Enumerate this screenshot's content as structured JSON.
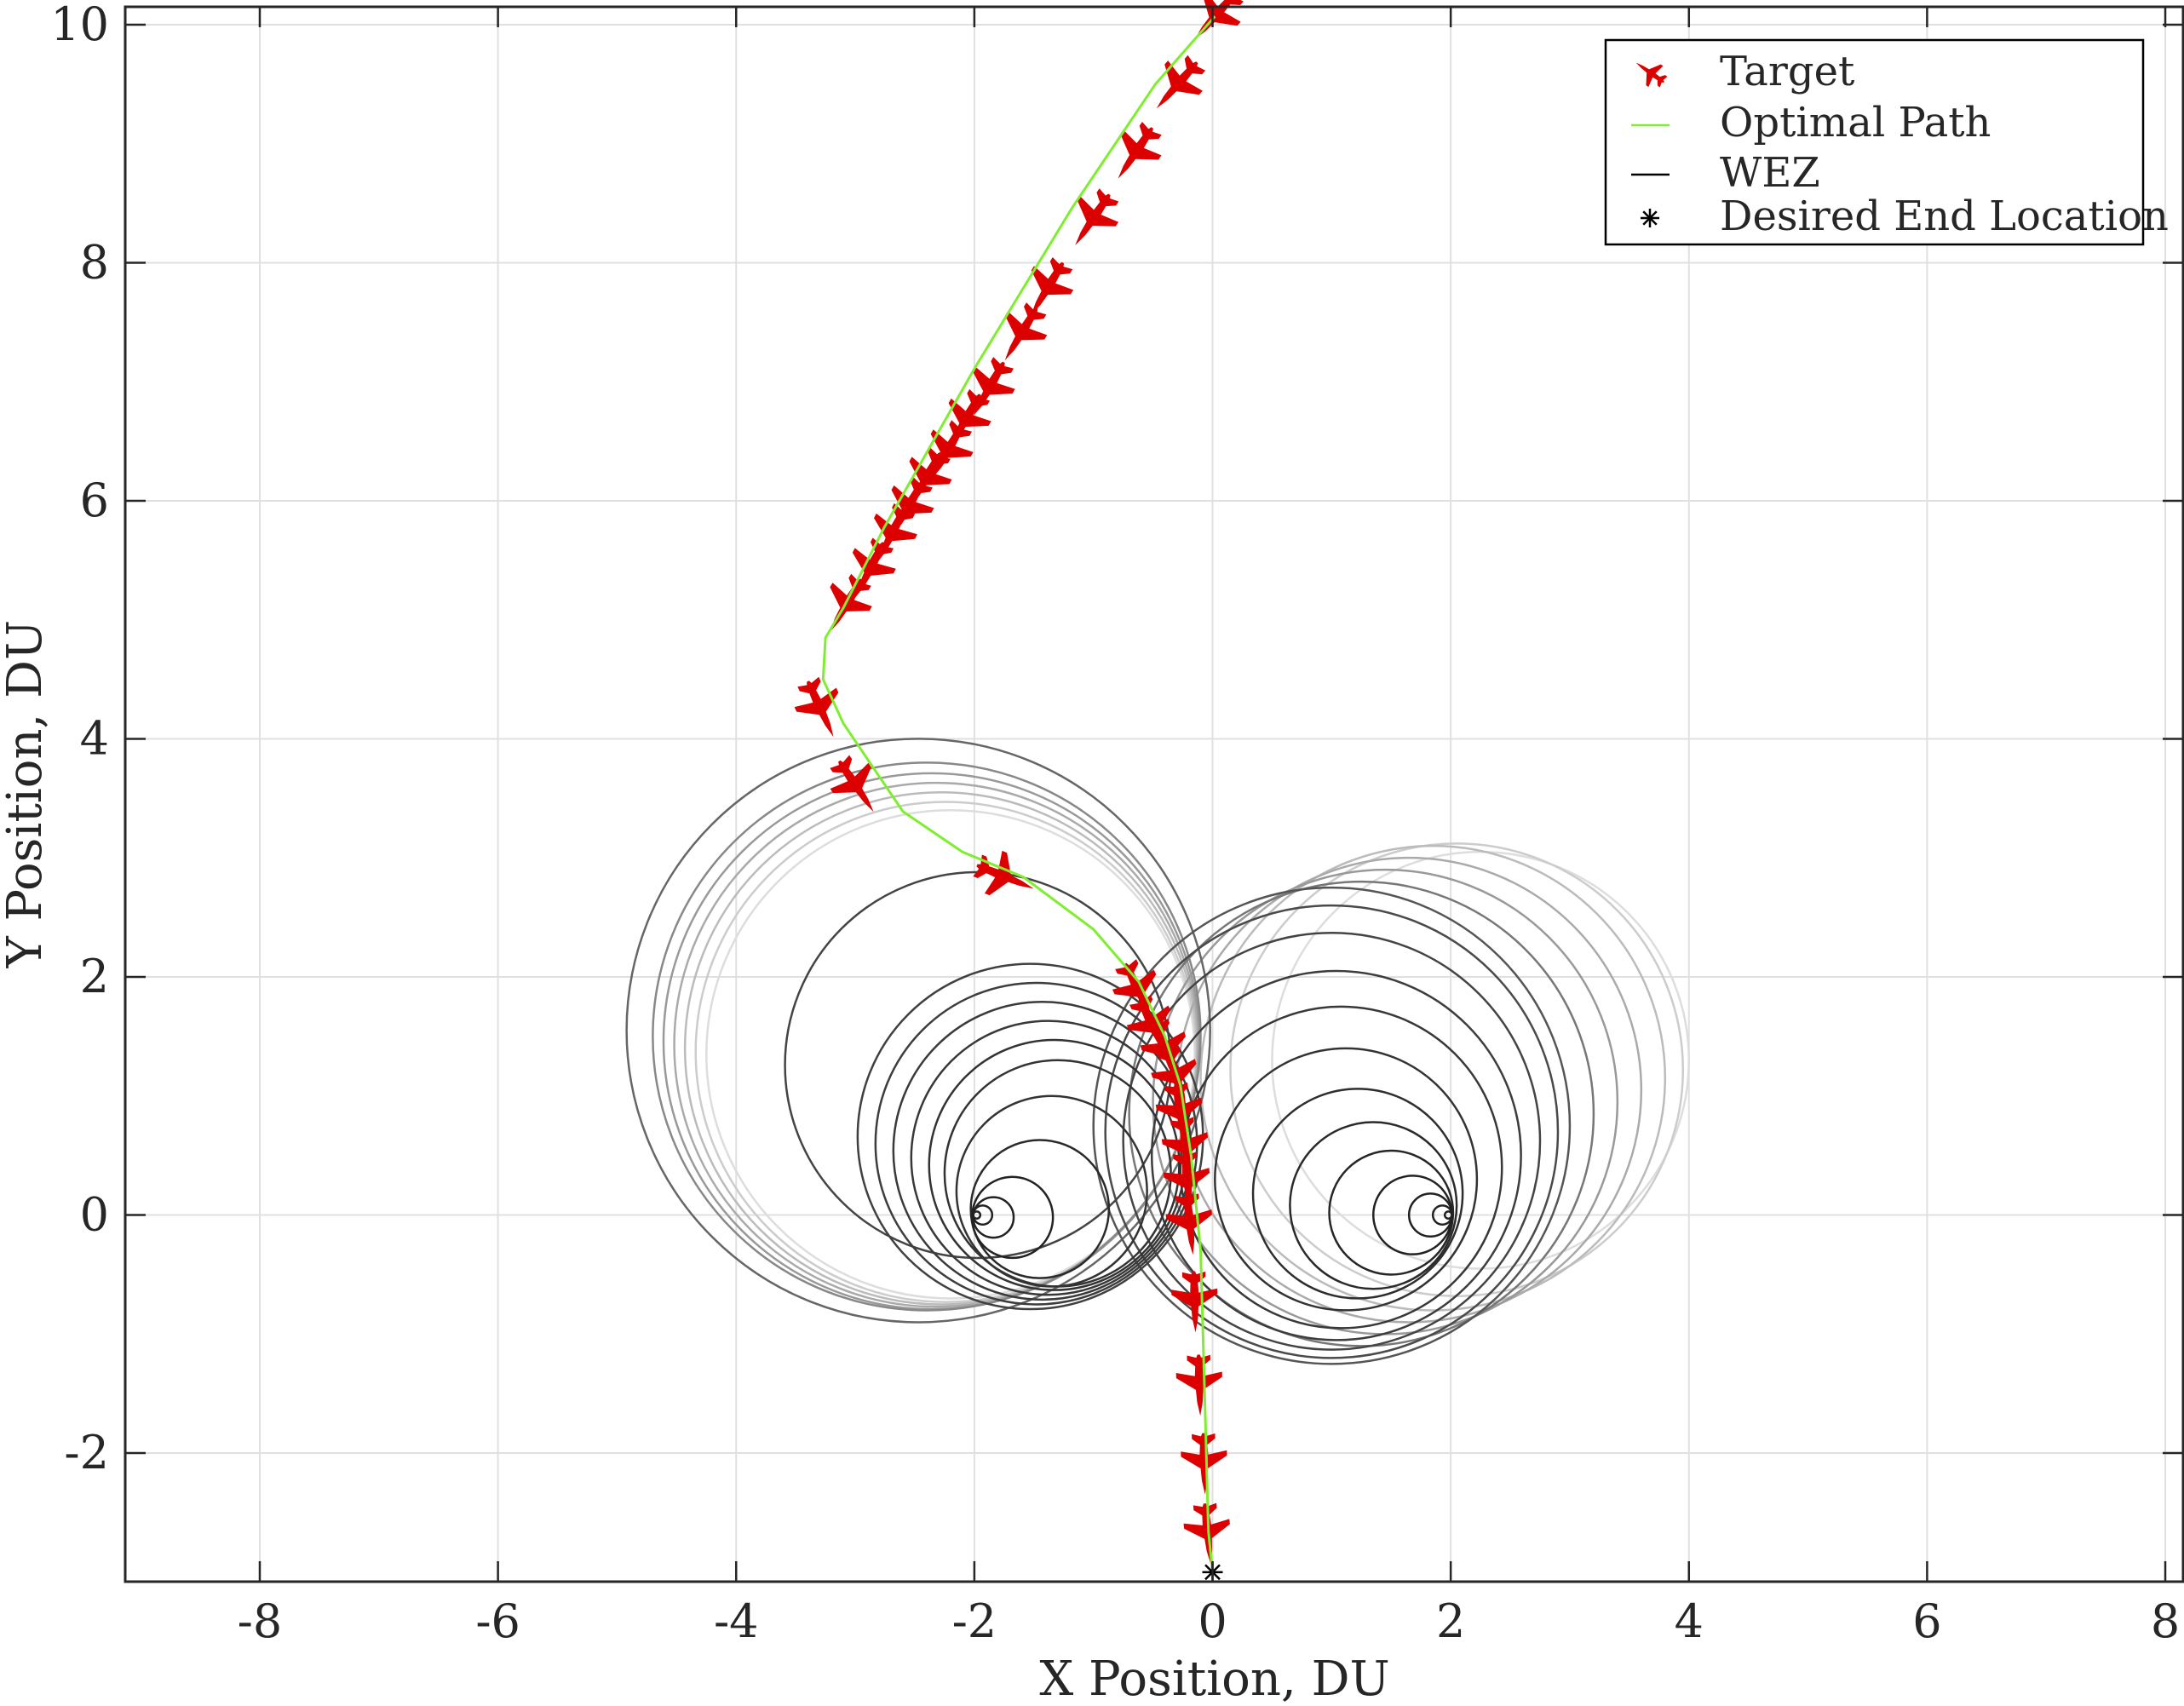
{
  "chart_data": {
    "type": "line",
    "title": "",
    "xlabel": "X Position, DU",
    "ylabel": "Y Position, DU",
    "xlim": [
      -9.13,
      8.15
    ],
    "ylim": [
      -3.08,
      10.15
    ],
    "xticks": [
      -8,
      -6,
      -4,
      -2,
      0,
      2,
      4,
      6,
      8
    ],
    "yticks": [
      -2,
      0,
      2,
      4,
      6,
      8,
      10
    ],
    "grid": true,
    "equal_aspect": true,
    "legend_placement": "top-right",
    "legend": [
      {
        "key": "target",
        "label": "Target",
        "marker": "jet-icon",
        "color": "#dd0000"
      },
      {
        "key": "path",
        "label": "Optimal Path",
        "marker": "line",
        "color": "#80ee30"
      },
      {
        "key": "wez",
        "label": "WEZ",
        "marker": "line",
        "color": "#000000"
      },
      {
        "key": "end",
        "label": "Desired End Location",
        "marker": "asterisk",
        "color": "#000000"
      }
    ],
    "optimal_path": [
      [
        0.02,
        10.07
      ],
      [
        -0.48,
        9.5
      ],
      [
        -1.18,
        8.46
      ],
      [
        -2.0,
        7.11
      ],
      [
        -2.76,
        5.77
      ],
      [
        -3.1,
        5.1
      ],
      [
        -3.25,
        4.85
      ],
      [
        -3.27,
        4.5
      ],
      [
        -3.1,
        4.13
      ],
      [
        -2.6,
        3.39
      ],
      [
        -2.1,
        3.05
      ],
      [
        -1.59,
        2.84
      ],
      [
        -1.0,
        2.4
      ],
      [
        -0.62,
        1.96
      ],
      [
        -0.4,
        1.5
      ],
      [
        -0.27,
        1.09
      ],
      [
        -0.18,
        0.5
      ],
      [
        -0.1,
        -0.3
      ],
      [
        -0.06,
        -1.72
      ],
      [
        -0.035,
        -2.65
      ],
      [
        0,
        -3
      ]
    ],
    "targets": [
      [
        0.02,
        10.07
      ],
      [
        -0.3,
        9.49
      ],
      [
        -0.65,
        8.92
      ],
      [
        -1.01,
        8.36
      ],
      [
        -1.39,
        7.78
      ],
      [
        -1.61,
        7.4
      ],
      [
        -1.88,
        6.94
      ],
      [
        -2.08,
        6.67
      ],
      [
        -2.23,
        6.41
      ],
      [
        -2.41,
        6.18
      ],
      [
        -2.56,
        5.94
      ],
      [
        -2.7,
        5.71
      ],
      [
        -2.88,
        5.42
      ],
      [
        -3.08,
        5.12
      ],
      [
        -3.29,
        4.25
      ],
      [
        -2.99,
        3.6
      ],
      [
        -1.74,
        2.84
      ],
      [
        -0.62,
        1.88
      ],
      [
        -0.5,
        1.58
      ],
      [
        -0.39,
        1.38
      ],
      [
        -0.3,
        1.15
      ],
      [
        -0.27,
        0.85
      ],
      [
        -0.22,
        0.56
      ],
      [
        -0.21,
        0.27
      ],
      [
        -0.19,
        -0.08
      ],
      [
        -0.15,
        -0.73
      ],
      [
        -0.11,
        -1.43
      ],
      [
        -0.07,
        -2.09
      ],
      [
        -0.04,
        -2.68
      ]
    ],
    "desired_end": [
      0,
      -3
    ],
    "wez_circles": [
      {
        "c": [
          -1.98,
          0
        ],
        "r": 0.03,
        "shade": "#222222"
      },
      {
        "c": [
          -1.93,
          0
        ],
        "r": 0.08,
        "shade": "#222222"
      },
      {
        "c": [
          -1.84,
          -0.02
        ],
        "r": 0.17,
        "shade": "#222222"
      },
      {
        "c": [
          -1.68,
          -0.02
        ],
        "r": 0.34,
        "shade": "#222222"
      },
      {
        "c": [
          -1.45,
          0.05
        ],
        "r": 0.58,
        "shade": "#2a2a2a"
      },
      {
        "c": [
          -1.35,
          0.2
        ],
        "r": 0.8,
        "shade": "#333333"
      },
      {
        "c": [
          -1.3,
          0.35
        ],
        "r": 0.95,
        "shade": "#333333"
      },
      {
        "c": [
          -1.33,
          0.42
        ],
        "r": 1.05,
        "shade": "#333333"
      },
      {
        "c": [
          -1.38,
          0.48
        ],
        "r": 1.15,
        "shade": "#383838"
      },
      {
        "c": [
          -1.43,
          0.54
        ],
        "r": 1.25,
        "shade": "#3a3a3a"
      },
      {
        "c": [
          -1.48,
          0.6
        ],
        "r": 1.35,
        "shade": "#3d3d3d"
      },
      {
        "c": [
          -1.53,
          0.66
        ],
        "r": 1.45,
        "shade": "#404040"
      },
      {
        "c": [
          -1.97,
          1.26
        ],
        "r": 1.62,
        "shade": "#444444"
      },
      {
        "c": [
          -2.2,
          1.35
        ],
        "r": 2.05,
        "shade": "#dddddd"
      },
      {
        "c": [
          -2.24,
          1.37
        ],
        "r": 2.1,
        "shade": "#cccccc"
      },
      {
        "c": [
          -2.28,
          1.4
        ],
        "r": 2.15,
        "shade": "#bbbbbb"
      },
      {
        "c": [
          -2.32,
          1.43
        ],
        "r": 2.2,
        "shade": "#aaaaaa"
      },
      {
        "c": [
          -2.36,
          1.46
        ],
        "r": 2.25,
        "shade": "#999999"
      },
      {
        "c": [
          -2.4,
          1.5
        ],
        "r": 2.3,
        "shade": "#888888"
      },
      {
        "c": [
          -2.47,
          1.55
        ],
        "r": 2.45,
        "shade": "#666666"
      },
      {
        "c": [
          1.98,
          0
        ],
        "r": 0.03,
        "shade": "#222222"
      },
      {
        "c": [
          1.93,
          0
        ],
        "r": 0.08,
        "shade": "#222222"
      },
      {
        "c": [
          1.83,
          0
        ],
        "r": 0.18,
        "shade": "#222222"
      },
      {
        "c": [
          1.68,
          0
        ],
        "r": 0.33,
        "shade": "#222222"
      },
      {
        "c": [
          1.5,
          0.02
        ],
        "r": 0.52,
        "shade": "#262626"
      },
      {
        "c": [
          1.35,
          0.08
        ],
        "r": 0.7,
        "shade": "#2a2a2a"
      },
      {
        "c": [
          1.22,
          0.18
        ],
        "r": 0.88,
        "shade": "#2e2e2e"
      },
      {
        "c": [
          1.12,
          0.3
        ],
        "r": 1.1,
        "shade": "#333333"
      },
      {
        "c": [
          1.08,
          0.4
        ],
        "r": 1.35,
        "shade": "#383838"
      },
      {
        "c": [
          1.04,
          0.5
        ],
        "r": 1.55,
        "shade": "#3d3d3d"
      },
      {
        "c": [
          1.0,
          0.62
        ],
        "r": 1.75,
        "shade": "#444444"
      },
      {
        "c": [
          1.0,
          0.7
        ],
        "r": 1.9,
        "shade": "#4a4a4a"
      },
      {
        "c": [
          1.0,
          0.75
        ],
        "r": 2.0,
        "shade": "#555555"
      },
      {
        "c": [
          1.25,
          0.85
        ],
        "r": 1.95,
        "shade": "#777777"
      },
      {
        "c": [
          1.45,
          0.95
        ],
        "r": 1.95,
        "shade": "#999999"
      },
      {
        "c": [
          1.65,
          1.05
        ],
        "r": 1.95,
        "shade": "#aaaaaa"
      },
      {
        "c": [
          1.85,
          1.15
        ],
        "r": 1.95,
        "shade": "#bbbbbb"
      },
      {
        "c": [
          2.05,
          1.22
        ],
        "r": 1.9,
        "shade": "#cccccc"
      },
      {
        "c": [
          2.25,
          1.3
        ],
        "r": 1.75,
        "shade": "#dddddd"
      }
    ]
  }
}
